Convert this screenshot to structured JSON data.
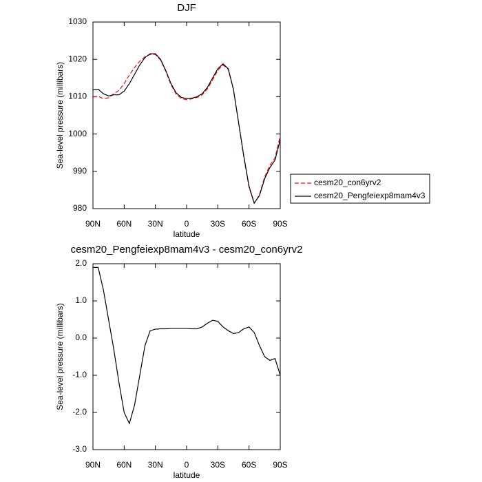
{
  "chart_data": [
    {
      "type": "line",
      "title": "DJF",
      "xlabel": "latitude",
      "ylabel": "Sea-level pressure (millibars)",
      "x": [
        90,
        85,
        80,
        75,
        70,
        65,
        60,
        55,
        50,
        45,
        40,
        35,
        30,
        25,
        20,
        15,
        10,
        5,
        0,
        -5,
        -10,
        -15,
        -20,
        -25,
        -30,
        -35,
        -40,
        -45,
        -50,
        -55,
        -60,
        -65,
        -70,
        -75,
        -80,
        -85,
        -90
      ],
      "series": [
        {
          "name": "cesm20_con6yrv2",
          "color": "#ff0000",
          "dashed": true,
          "values": [
            1009.9,
            1010.1,
            1009.5,
            1009.7,
            1010.8,
            1011.7,
            1013.5,
            1015.8,
            1017.8,
            1019.5,
            1020.7,
            1021.3,
            1021.3,
            1019.8,
            1016.8,
            1013.2,
            1010.7,
            1009.5,
            1009.2,
            1009.4,
            1009.8,
            1010.5,
            1012.1,
            1014.5,
            1017.1,
            1018.5,
            1017.3,
            1011.9,
            1002.9,
            993.8,
            985.7,
            981.4,
            983.7,
            988.5,
            991.6,
            993.6,
            999.5
          ]
        },
        {
          "name": "cesm20_Pengfeiexp8mam4v3",
          "color": "#000000",
          "dashed": false,
          "values": [
            1011.8,
            1012,
            1010.8,
            1010.2,
            1010.5,
            1010.5,
            1011.5,
            1013.5,
            1016,
            1018.5,
            1020.5,
            1021.5,
            1021.5,
            1020,
            1017,
            1013.5,
            1011,
            1009.8,
            1009.5,
            1009.6,
            1010,
            1010.8,
            1012.5,
            1015,
            1017.5,
            1018.8,
            1017.5,
            1012,
            1003,
            994,
            986,
            981.5,
            983.5,
            988,
            991,
            993,
            998.5
          ]
        }
      ],
      "xlim": [
        90,
        -90
      ],
      "xticks": [
        {
          "value": 90,
          "label": "90N"
        },
        {
          "value": 60,
          "label": "60N"
        },
        {
          "value": 30,
          "label": "30N"
        },
        0,
        {
          "value": -30,
          "label": "30S"
        },
        {
          "value": -60,
          "label": "60S"
        },
        {
          "value": -90,
          "label": "90S"
        }
      ],
      "ylim": [
        980,
        1030
      ],
      "yticks": [
        980,
        990,
        1000,
        1010,
        1020,
        1030
      ],
      "legend": "right"
    },
    {
      "type": "line",
      "title": "cesm20_Pengfeiexp8mam4v3 - cesm20_con6yrv2",
      "xlabel": "latitude",
      "ylabel": "Sea-level pressure (millibars)",
      "x": [
        90,
        85,
        80,
        75,
        70,
        65,
        60,
        55,
        50,
        45,
        40,
        35,
        30,
        25,
        20,
        15,
        10,
        5,
        0,
        -5,
        -10,
        -15,
        -20,
        -25,
        -30,
        -35,
        -40,
        -45,
        -50,
        -55,
        -60,
        -65,
        -70,
        -75,
        -80,
        -85,
        -90
      ],
      "color": "#000000",
      "values": [
        1.9,
        1.9,
        1.3,
        0.5,
        -0.3,
        -1.2,
        -2.0,
        -2.3,
        -1.8,
        -1.0,
        -0.2,
        0.2,
        0.24,
        0.25,
        0.25,
        0.26,
        0.26,
        0.26,
        0.26,
        0.25,
        0.25,
        0.3,
        0.4,
        0.48,
        0.45,
        0.3,
        0.2,
        0.12,
        0.15,
        0.25,
        0.3,
        0.15,
        -0.2,
        -0.5,
        -0.6,
        -0.55,
        -1.0
      ],
      "xlim": [
        90,
        -90
      ],
      "xticks": [
        {
          "value": 90,
          "label": "90N"
        },
        {
          "value": 60,
          "label": "60N"
        },
        {
          "value": 30,
          "label": "30N"
        },
        0,
        {
          "value": -30,
          "label": "30S"
        },
        {
          "value": -60,
          "label": "60S"
        },
        {
          "value": -90,
          "label": "90S"
        }
      ],
      "ylim": [
        -3,
        2
      ],
      "yticks": [
        {
          "value": -3,
          "label": "-3.0"
        },
        {
          "value": -2,
          "label": "-2.0"
        },
        {
          "value": -1,
          "label": "-1.0"
        },
        {
          "value": 0,
          "label": "0.0"
        },
        {
          "value": 1,
          "label": "1.0"
        },
        {
          "value": 2,
          "label": "2.0"
        }
      ]
    }
  ]
}
